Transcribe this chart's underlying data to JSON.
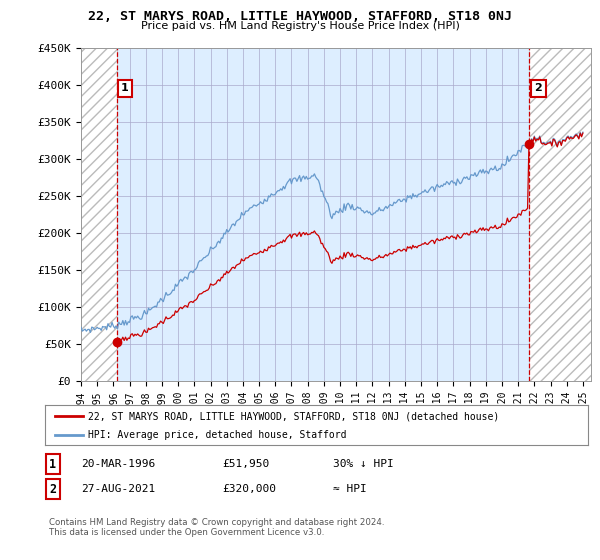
{
  "title": "22, ST MARYS ROAD, LITTLE HAYWOOD, STAFFORD, ST18 0NJ",
  "subtitle": "Price paid vs. HM Land Registry's House Price Index (HPI)",
  "ylabel_ticks": [
    "£0",
    "£50K",
    "£100K",
    "£150K",
    "£200K",
    "£250K",
    "£300K",
    "£350K",
    "£400K",
    "£450K"
  ],
  "ylim": [
    0,
    450000
  ],
  "xlim_start": 1994.0,
  "xlim_end": 2025.5,
  "sale1_year": 1996.22,
  "sale1_price": 51950,
  "sale2_year": 2021.65,
  "sale2_price": 320000,
  "sale1_label": "1",
  "sale2_label": "2",
  "red_color": "#cc0000",
  "blue_color": "#6699cc",
  "bg_color": "#ddeeff",
  "grid_color": "#aaaacc",
  "legend1_text": "22, ST MARYS ROAD, LITTLE HAYWOOD, STAFFORD, ST18 0NJ (detached house)",
  "legend2_text": "HPI: Average price, detached house, Stafford",
  "footnote": "Contains HM Land Registry data © Crown copyright and database right 2024.\nThis data is licensed under the Open Government Licence v3.0.",
  "xticks": [
    1994,
    1995,
    1996,
    1997,
    1998,
    1999,
    2000,
    2001,
    2002,
    2003,
    2004,
    2005,
    2006,
    2007,
    2008,
    2009,
    2010,
    2011,
    2012,
    2013,
    2014,
    2015,
    2016,
    2017,
    2018,
    2019,
    2020,
    2021,
    2022,
    2023,
    2024,
    2025
  ]
}
